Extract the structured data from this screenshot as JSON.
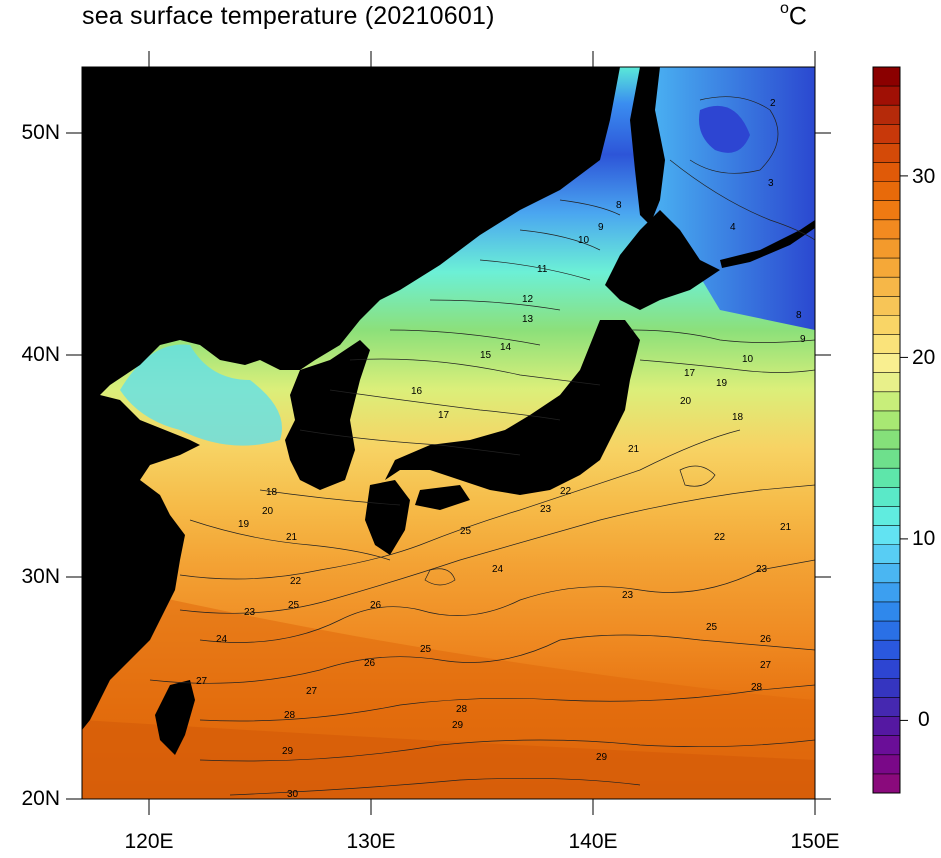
{
  "title": "sea surface temperature (20210601)",
  "unit_main": "C",
  "unit_degree": "o",
  "lat_labels": [
    "50N",
    "40N",
    "30N",
    "20N"
  ],
  "lon_labels": [
    "120E",
    "130E",
    "140E",
    "150E"
  ],
  "colorbar": {
    "labels": [
      "30",
      "20",
      "10",
      "0"
    ],
    "min": -4,
    "max": 36,
    "colors": [
      "#8b0000",
      "#a01005",
      "#b52a0a",
      "#c8380a",
      "#d44a08",
      "#e05a08",
      "#e86a0a",
      "#ef7a12",
      "#f28a20",
      "#f39a2c",
      "#f5a838",
      "#f6b748",
      "#f7c557",
      "#f9d566",
      "#fae37a",
      "#f9ef90",
      "#e8f08a",
      "#c8ee7a",
      "#a8e873",
      "#85e07a",
      "#6ee08c",
      "#5ee6aa",
      "#5ae9c8",
      "#60ecdf",
      "#62e3f2",
      "#58cdf4",
      "#4ab6f2",
      "#3c9ff0",
      "#2f88ec",
      "#2a70e6",
      "#2a58de",
      "#2d45d2",
      "#3535c0",
      "#4528b0",
      "#5518a2",
      "#6a0e98",
      "#7a0888",
      "#8a0a7c"
    ]
  },
  "map": {
    "lat_range": [
      20,
      53
    ],
    "lon_range": [
      117,
      150
    ],
    "land_color": "#000000",
    "contour_labels": [
      "2",
      "3",
      "4",
      "8",
      "9",
      "10",
      "11",
      "12",
      "13",
      "14",
      "15",
      "16",
      "17",
      "18",
      "19",
      "20",
      "21",
      "22",
      "23",
      "24",
      "25",
      "26",
      "27",
      "28",
      "29",
      "30"
    ]
  }
}
